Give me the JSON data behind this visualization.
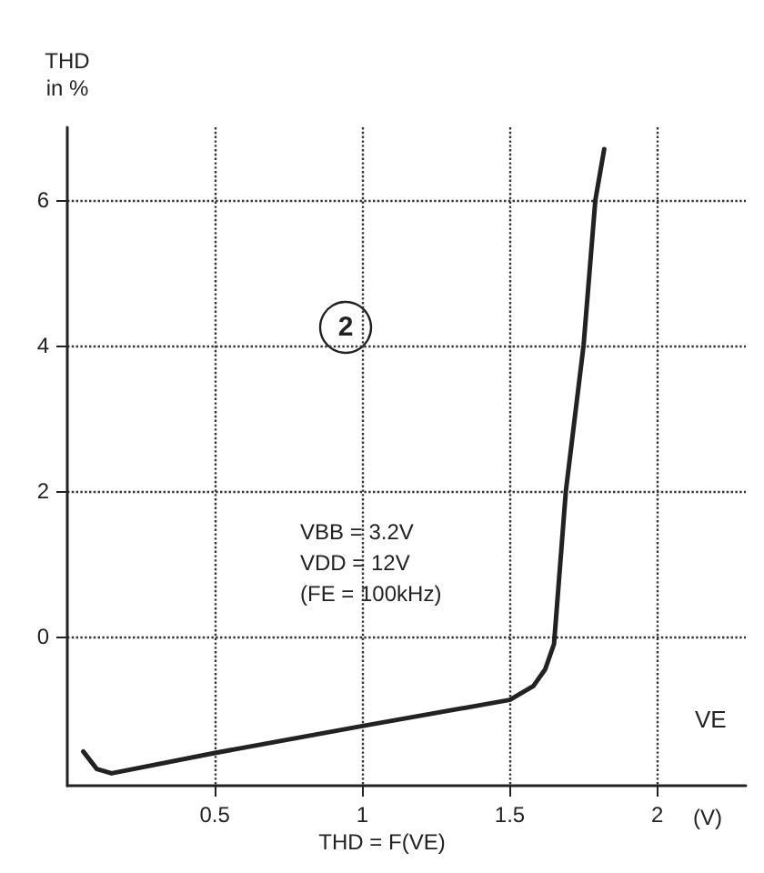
{
  "chart_data": {
    "type": "line",
    "title": "THD = F(VE)",
    "xlabel": "VE",
    "ylabel": "THD\nin %",
    "annotations": [
      "2",
      "VBB = 3.2V\nVDD = 12V\n(FE = 100kHz)",
      "(V)"
    ],
    "x": [
      0.054,
      0.1,
      0.15,
      0.5,
      1.0,
      1.5,
      1.58,
      1.62,
      1.65,
      1.69,
      1.75,
      1.79,
      1.82
    ],
    "series": [
      {
        "color": "#222222",
        "values": [
          -1.58,
          -1.82,
          -1.88,
          -1.6,
          -1.23,
          -0.87,
          -0.68,
          -0.45,
          -0.1,
          2.0,
          4.0,
          6.0,
          6.7
        ]
      }
    ],
    "xlim": [
      0,
      2.3
    ],
    "ylim": [
      -2.05,
      7
    ],
    "xticks": [
      0.5,
      1,
      1.5,
      2
    ],
    "yticks": [
      0,
      2,
      4,
      6
    ],
    "grid": true,
    "marker": "none",
    "line_style": "solid"
  }
}
